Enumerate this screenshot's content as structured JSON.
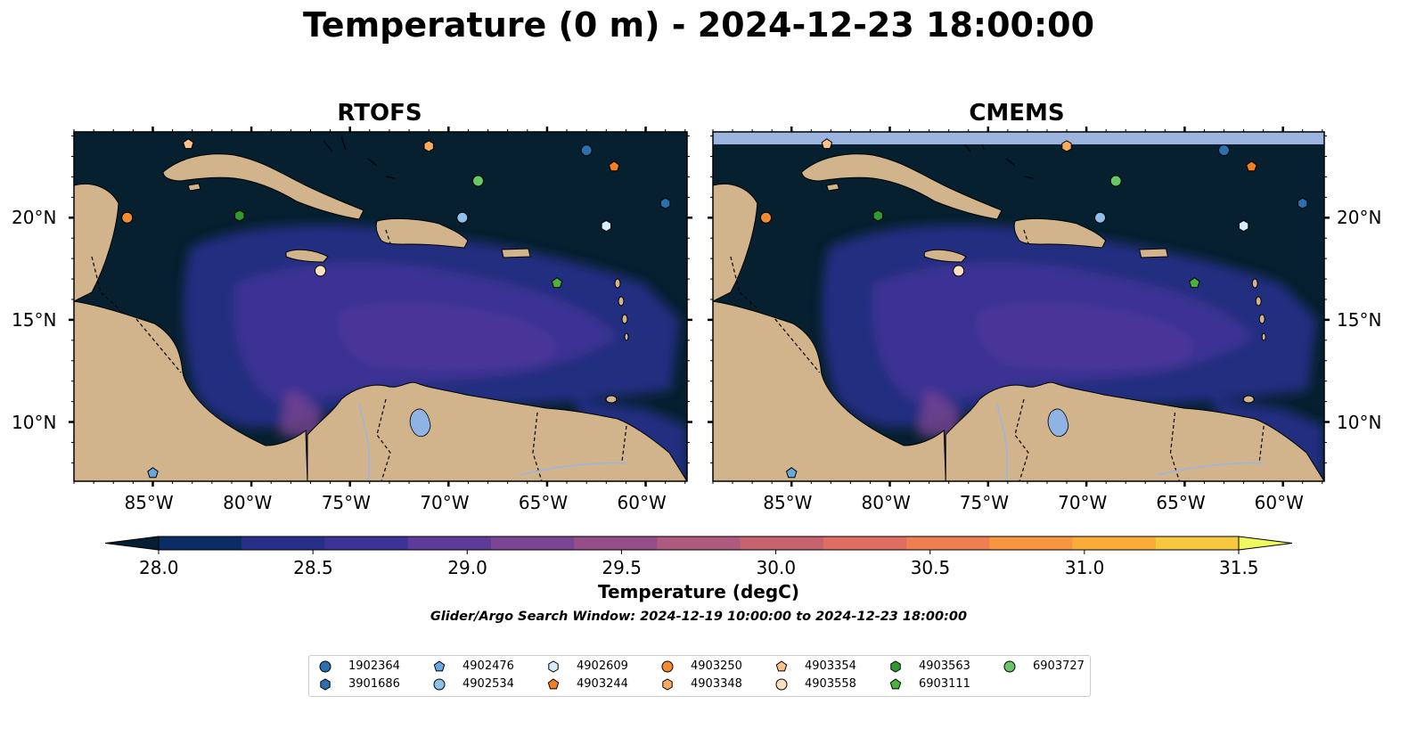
{
  "title": "Temperature (0 m) - 2024-12-23 18:00:00",
  "panels": [
    {
      "title": "RTOFS"
    },
    {
      "title": "CMEMS"
    }
  ],
  "lon_ticks": [
    "85°W",
    "80°W",
    "75°W",
    "70°W",
    "65°W",
    "60°W"
  ],
  "lat_ticks": [
    "20°N",
    "15°N",
    "10°N"
  ],
  "colorbar": {
    "label": "Temperature (degC)",
    "ticks": [
      "28.0",
      "28.5",
      "29.0",
      "29.5",
      "30.0",
      "30.5",
      "31.0",
      "31.5"
    ],
    "range": [
      28.0,
      31.5
    ],
    "extend": "both",
    "colors": [
      "#051e33",
      "#0c2d63",
      "#272f88",
      "#3d3296",
      "#5e3b98",
      "#7a4592",
      "#944f88",
      "#ad5a7e",
      "#c6636f",
      "#df6e62",
      "#ef7f51",
      "#f79540",
      "#f9ac37",
      "#f5c840",
      "#eef95e"
    ]
  },
  "caption": "Glider/Argo Search Window: 2024-12-19 10:00:00 to 2024-12-23 18:00:00",
  "colors": {
    "land": "#d2b48c",
    "ocean_dark": "#06202f",
    "ocean_mid": "#202e80",
    "ocean_warm": "#4b3598",
    "mask_band": "#9bb5e0",
    "lake": "#8fb4e3"
  },
  "floats": [
    {
      "id": "1902364",
      "marker": "circle",
      "color": "#2c6fae",
      "lon": -63.0,
      "lat": 23.3
    },
    {
      "id": "3901686",
      "marker": "hexagon",
      "color": "#2c6fae",
      "lon": -59.0,
      "lat": 20.7
    },
    {
      "id": "4902476",
      "marker": "pentagon",
      "color": "#6aa7dd",
      "lon": -85.0,
      "lat": 7.5
    },
    {
      "id": "4902534",
      "marker": "circle",
      "color": "#8fc0ea",
      "lon": -69.3,
      "lat": 20.0
    },
    {
      "id": "4902609",
      "marker": "hexagon",
      "color": "#d9ecfb",
      "lon": -62.0,
      "lat": 19.6
    },
    {
      "id": "4903244",
      "marker": "pentagon",
      "color": "#f57f20",
      "lon": -61.6,
      "lat": 22.5
    },
    {
      "id": "4903250",
      "marker": "circle",
      "color": "#f58b30",
      "lon": -86.3,
      "lat": 20.0
    },
    {
      "id": "4903348",
      "marker": "hexagon",
      "color": "#fbaa5e",
      "lon": -71.0,
      "lat": 23.5
    },
    {
      "id": "4903354",
      "marker": "pentagon",
      "color": "#fcc28c",
      "lon": -83.2,
      "lat": 23.6
    },
    {
      "id": "4903558",
      "marker": "circle",
      "color": "#fde0c2",
      "lon": -76.5,
      "lat": 17.4
    },
    {
      "id": "4903563",
      "marker": "hexagon",
      "color": "#2f9a2f",
      "lon": -80.6,
      "lat": 20.1
    },
    {
      "id": "6903111",
      "marker": "pentagon",
      "color": "#49b43c",
      "lon": -64.5,
      "lat": 16.8
    },
    {
      "id": "6903727",
      "marker": "circle",
      "color": "#66c766",
      "lon": -68.5,
      "lat": 21.8
    }
  ]
}
